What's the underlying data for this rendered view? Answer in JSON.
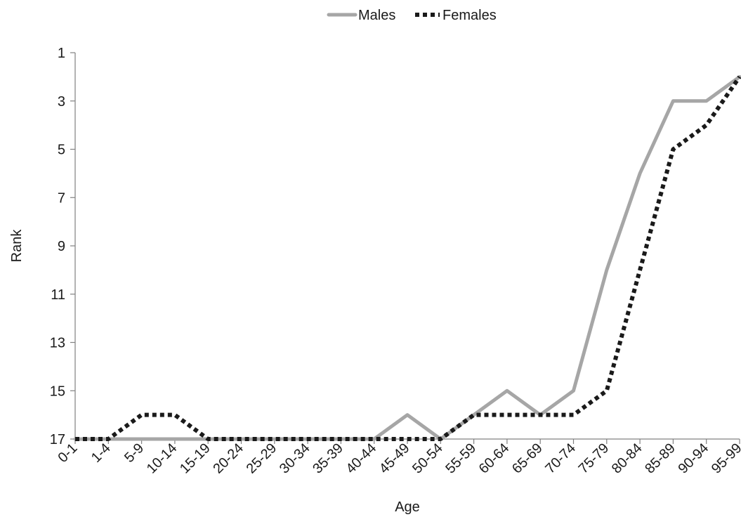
{
  "chart_data": {
    "type": "line",
    "title": "",
    "xlabel": "Age",
    "ylabel": "Rank",
    "categories": [
      "0-1",
      "1-4",
      "5-9",
      "10-14",
      "15-19",
      "20-24",
      "25-29",
      "30-34",
      "35-39",
      "40-44",
      "45-49",
      "50-54",
      "55-59",
      "60-64",
      "65-69",
      "70-74",
      "75-79",
      "80-84",
      "85-89",
      "90-94",
      "95-99"
    ],
    "ylim": [
      1,
      17
    ],
    "y_inverted": true,
    "yticks": [
      1,
      3,
      5,
      7,
      9,
      11,
      13,
      15,
      17
    ],
    "grid": false,
    "legend_position": "top-center",
    "series": [
      {
        "name": "Males",
        "color": "#a6a6a6",
        "style": "solid",
        "values": [
          17,
          17,
          17,
          17,
          17,
          17,
          17,
          17,
          17,
          17,
          16,
          17,
          16,
          15,
          16,
          15,
          10,
          6,
          3,
          3,
          2
        ]
      },
      {
        "name": "Females",
        "color": "#1a1a1a",
        "style": "dotted",
        "values": [
          17,
          17,
          16,
          16,
          17,
          17,
          17,
          17,
          17,
          17,
          17,
          17,
          16,
          16,
          16,
          16,
          15,
          10,
          5,
          4,
          2
        ]
      }
    ]
  }
}
